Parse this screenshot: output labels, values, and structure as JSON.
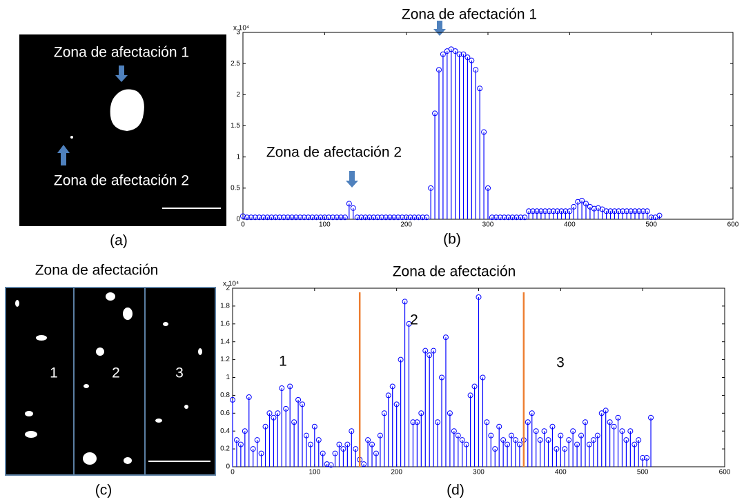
{
  "panels": {
    "a": {
      "top_label": "Zona de afectación 1",
      "bottom_label": "Zona de afectación 2",
      "caption": "(a)"
    },
    "c": {
      "title": "Zona de afectación",
      "sections": [
        "1",
        "2",
        "3"
      ],
      "caption": "(c)"
    }
  },
  "chart_data": [
    {
      "type": "stem",
      "title": "Zona de afectación 1",
      "caption": "(b)",
      "annotations": [
        "Zona de afectación 2"
      ],
      "y_multiplier": "x 10⁴",
      "color": "#0000ff",
      "xlim": [
        0,
        600
      ],
      "xticks": [
        0,
        100,
        200,
        300,
        400,
        500,
        600
      ],
      "ylim": [
        0,
        30000
      ],
      "yticks": [
        {
          "value": 0,
          "label": "0"
        },
        {
          "value": 5000,
          "label": "0.5"
        },
        {
          "value": 10000,
          "label": "1"
        },
        {
          "value": 15000,
          "label": "1.5"
        },
        {
          "value": 20000,
          "label": "2"
        },
        {
          "value": 25000,
          "label": "2.5"
        },
        {
          "value": 30000,
          "label": "3"
        }
      ],
      "x": [
        0,
        5,
        10,
        15,
        20,
        25,
        30,
        35,
        40,
        45,
        50,
        55,
        60,
        65,
        70,
        75,
        80,
        85,
        90,
        95,
        100,
        105,
        110,
        115,
        120,
        125,
        130,
        135,
        140,
        145,
        150,
        155,
        160,
        165,
        170,
        175,
        180,
        185,
        190,
        195,
        200,
        205,
        210,
        215,
        220,
        225,
        230,
        235,
        240,
        245,
        250,
        255,
        260,
        265,
        270,
        275,
        280,
        285,
        290,
        295,
        300,
        305,
        310,
        315,
        320,
        325,
        330,
        335,
        340,
        345,
        350,
        355,
        360,
        365,
        370,
        375,
        380,
        385,
        390,
        395,
        400,
        405,
        410,
        415,
        420,
        425,
        430,
        435,
        440,
        445,
        450,
        455,
        460,
        465,
        470,
        475,
        480,
        485,
        490,
        495,
        500,
        505,
        510
      ],
      "values": [
        500,
        300,
        300,
        300,
        300,
        300,
        300,
        300,
        300,
        300,
        300,
        300,
        300,
        300,
        300,
        300,
        300,
        300,
        300,
        300,
        300,
        300,
        300,
        300,
        300,
        300,
        2500,
        1800,
        300,
        300,
        300,
        300,
        300,
        300,
        300,
        300,
        300,
        300,
        300,
        300,
        300,
        300,
        300,
        300,
        300,
        300,
        5000,
        17000,
        24000,
        26500,
        27000,
        27300,
        27000,
        26500,
        26500,
        26000,
        25500,
        24000,
        21000,
        14000,
        5000,
        300,
        300,
        300,
        300,
        300,
        300,
        300,
        300,
        300,
        1300,
        1300,
        1300,
        1300,
        1300,
        1300,
        1300,
        1300,
        1300,
        1300,
        1300,
        2000,
        2800,
        3000,
        2500,
        2000,
        1700,
        1800,
        1600,
        1300,
        1300,
        1300,
        1300,
        1300,
        1300,
        1300,
        1300,
        1300,
        1300,
        1300,
        300,
        300,
        600
      ]
    },
    {
      "type": "stem",
      "title": "Zona de afectación",
      "caption": "(d)",
      "annotations": [
        "1",
        "2",
        "3"
      ],
      "y_multiplier": "x 10⁴",
      "color": "#0000ff",
      "vlines": [
        155,
        355
      ],
      "vline_color": "#ed7d31",
      "xlim": [
        0,
        600
      ],
      "xticks": [
        0,
        100,
        200,
        300,
        400,
        500,
        600
      ],
      "ylim": [
        0,
        20000
      ],
      "yticks": [
        {
          "value": 0,
          "label": "0"
        },
        {
          "value": 2000,
          "label": "0.2"
        },
        {
          "value": 4000,
          "label": "0.4"
        },
        {
          "value": 6000,
          "label": "0.6"
        },
        {
          "value": 8000,
          "label": "0.8"
        },
        {
          "value": 10000,
          "label": "1"
        },
        {
          "value": 12000,
          "label": "1.2"
        },
        {
          "value": 14000,
          "label": "1.4"
        },
        {
          "value": 16000,
          "label": "1.6"
        },
        {
          "value": 18000,
          "label": "1.8"
        },
        {
          "value": 20000,
          "label": "2"
        }
      ],
      "x": [
        0,
        5,
        10,
        15,
        20,
        25,
        30,
        35,
        40,
        45,
        50,
        55,
        60,
        65,
        70,
        75,
        80,
        85,
        90,
        95,
        100,
        105,
        110,
        115,
        120,
        125,
        130,
        135,
        140,
        145,
        150,
        155,
        160,
        165,
        170,
        175,
        180,
        185,
        190,
        195,
        200,
        205,
        210,
        215,
        220,
        225,
        230,
        235,
        240,
        245,
        250,
        255,
        260,
        265,
        270,
        275,
        280,
        285,
        290,
        295,
        300,
        305,
        310,
        315,
        320,
        325,
        330,
        335,
        340,
        345,
        350,
        355,
        360,
        365,
        370,
        375,
        380,
        385,
        390,
        395,
        400,
        405,
        410,
        415,
        420,
        425,
        430,
        435,
        440,
        445,
        450,
        455,
        460,
        465,
        470,
        475,
        480,
        485,
        490,
        495,
        500,
        505,
        510
      ],
      "values": [
        7500,
        3000,
        2500,
        4000,
        7800,
        2000,
        3000,
        1500,
        4500,
        6000,
        5500,
        6000,
        8800,
        6500,
        9000,
        5000,
        7500,
        7000,
        3500,
        2500,
        4500,
        3000,
        1500,
        300,
        200,
        1500,
        2500,
        2000,
        2500,
        4000,
        2000,
        800,
        300,
        3000,
        2500,
        1500,
        3500,
        6000,
        8000,
        9000,
        7000,
        12000,
        18500,
        16000,
        5000,
        5000,
        6000,
        13000,
        12500,
        13000,
        5000,
        10000,
        14500,
        6000,
        4000,
        3500,
        3000,
        2500,
        8000,
        9000,
        19000,
        10000,
        5000,
        3500,
        2000,
        4500,
        3000,
        2500,
        3500,
        3000,
        2500,
        3000,
        5000,
        6000,
        4000,
        3000,
        4000,
        3000,
        4500,
        2000,
        3500,
        2000,
        3000,
        4000,
        2500,
        3500,
        5000,
        2500,
        3000,
        3500,
        6000,
        6300,
        5000,
        4500,
        5500,
        4000,
        3000,
        4000,
        2500,
        3000,
        1000,
        1000,
        5500
      ]
    }
  ]
}
